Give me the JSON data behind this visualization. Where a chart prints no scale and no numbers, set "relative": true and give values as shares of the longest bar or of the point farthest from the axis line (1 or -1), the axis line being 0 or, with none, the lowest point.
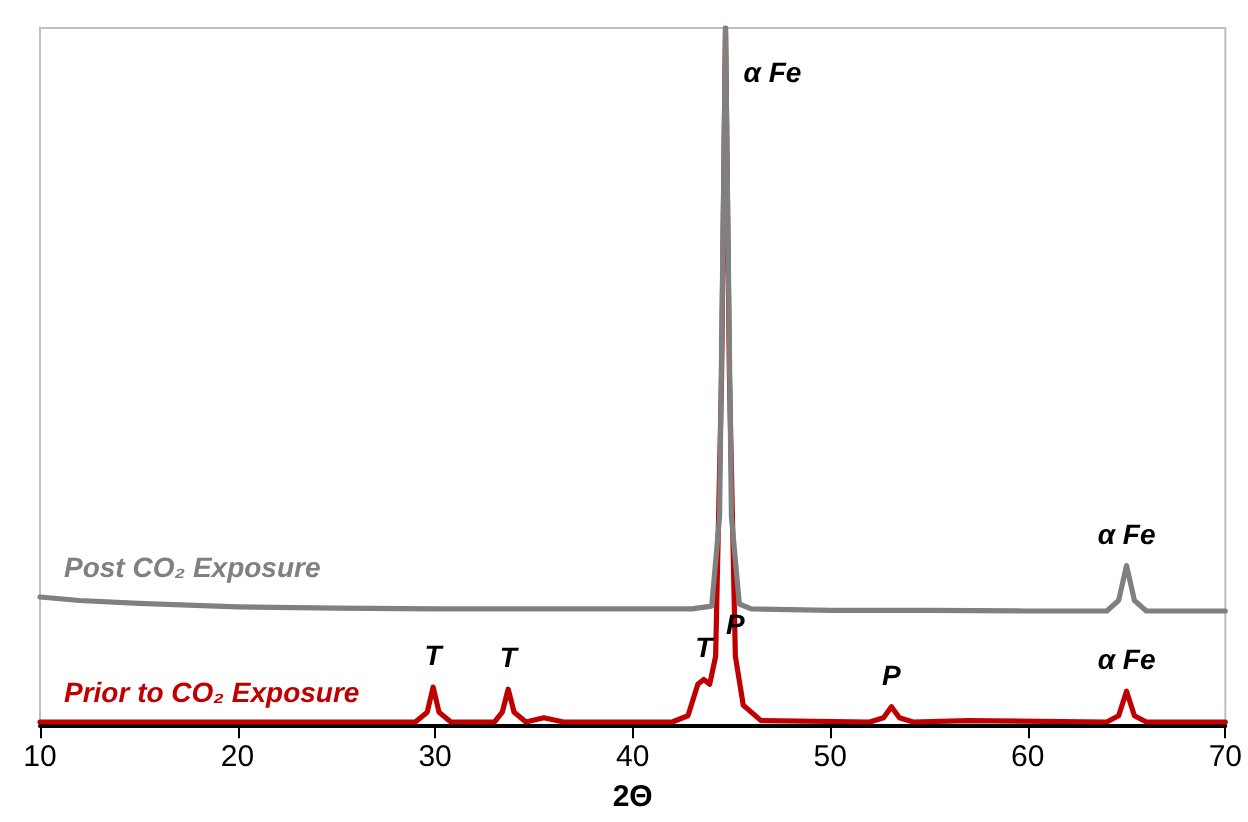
{
  "chart_data": {
    "type": "line",
    "relative": true,
    "xlabel": "2Θ",
    "xlim": [
      10,
      70
    ],
    "xticks": [
      10,
      20,
      30,
      40,
      50,
      60,
      70
    ],
    "grid": false,
    "legend": false,
    "marker": "none",
    "line_style": "solid",
    "series": [
      {
        "name": "Post CO₂ Exposure",
        "color": "#808080",
        "x": [
          10,
          12,
          15,
          20,
          25,
          30,
          35,
          40,
          43,
          44,
          44.4,
          44.7,
          45,
          45.4,
          46,
          50,
          55,
          60,
          64,
          64.6,
          65,
          65.4,
          66,
          70
        ],
        "values": [
          0.185,
          0.18,
          0.176,
          0.171,
          0.169,
          0.168,
          0.168,
          0.168,
          0.168,
          0.172,
          0.3,
          1,
          0.3,
          0.175,
          0.168,
          0.166,
          0.166,
          0.165,
          0.165,
          0.18,
          0.23,
          0.18,
          0.165,
          0.165
        ]
      },
      {
        "name": "Prior to CO₂ Exposure",
        "color": "#c00000",
        "x": [
          10,
          20,
          29,
          29.6,
          29.9,
          30.2,
          30.8,
          33,
          33.4,
          33.7,
          34,
          34.6,
          35.5,
          36.5,
          42,
          42.8,
          43.3,
          43.6,
          43.9,
          44.2,
          44.5,
          44.7,
          44.9,
          45.2,
          45.6,
          46.5,
          52,
          52.7,
          53.1,
          53.5,
          54.2,
          57,
          64,
          64.6,
          65,
          65.4,
          66,
          70
        ],
        "values": [
          0.006,
          0.006,
          0.006,
          0.02,
          0.056,
          0.02,
          0.006,
          0.006,
          0.02,
          0.053,
          0.02,
          0.006,
          0.012,
          0.006,
          0.006,
          0.015,
          0.06,
          0.067,
          0.06,
          0.1,
          0.5,
          1,
          0.5,
          0.1,
          0.03,
          0.008,
          0.006,
          0.012,
          0.028,
          0.012,
          0.006,
          0.008,
          0.006,
          0.015,
          0.05,
          0.015,
          0.006,
          0.006
        ]
      }
    ],
    "annotations": [
      {
        "text": "α Fe",
        "x": 44.7,
        "y": 1
      },
      {
        "text": "α Fe",
        "x": 65,
        "y": 0.23
      },
      {
        "text": "T",
        "x": 29.9,
        "y": 0.056
      },
      {
        "text": "T",
        "x": 33.7,
        "y": 0.053
      },
      {
        "text": "T",
        "x": 43.6,
        "y": 0.067
      },
      {
        "text": "P",
        "x": 45.2,
        "y": 0.1
      },
      {
        "text": "P",
        "x": 53.1,
        "y": 0.028
      },
      {
        "text": "α Fe",
        "x": 65,
        "y": 0.05
      }
    ]
  }
}
